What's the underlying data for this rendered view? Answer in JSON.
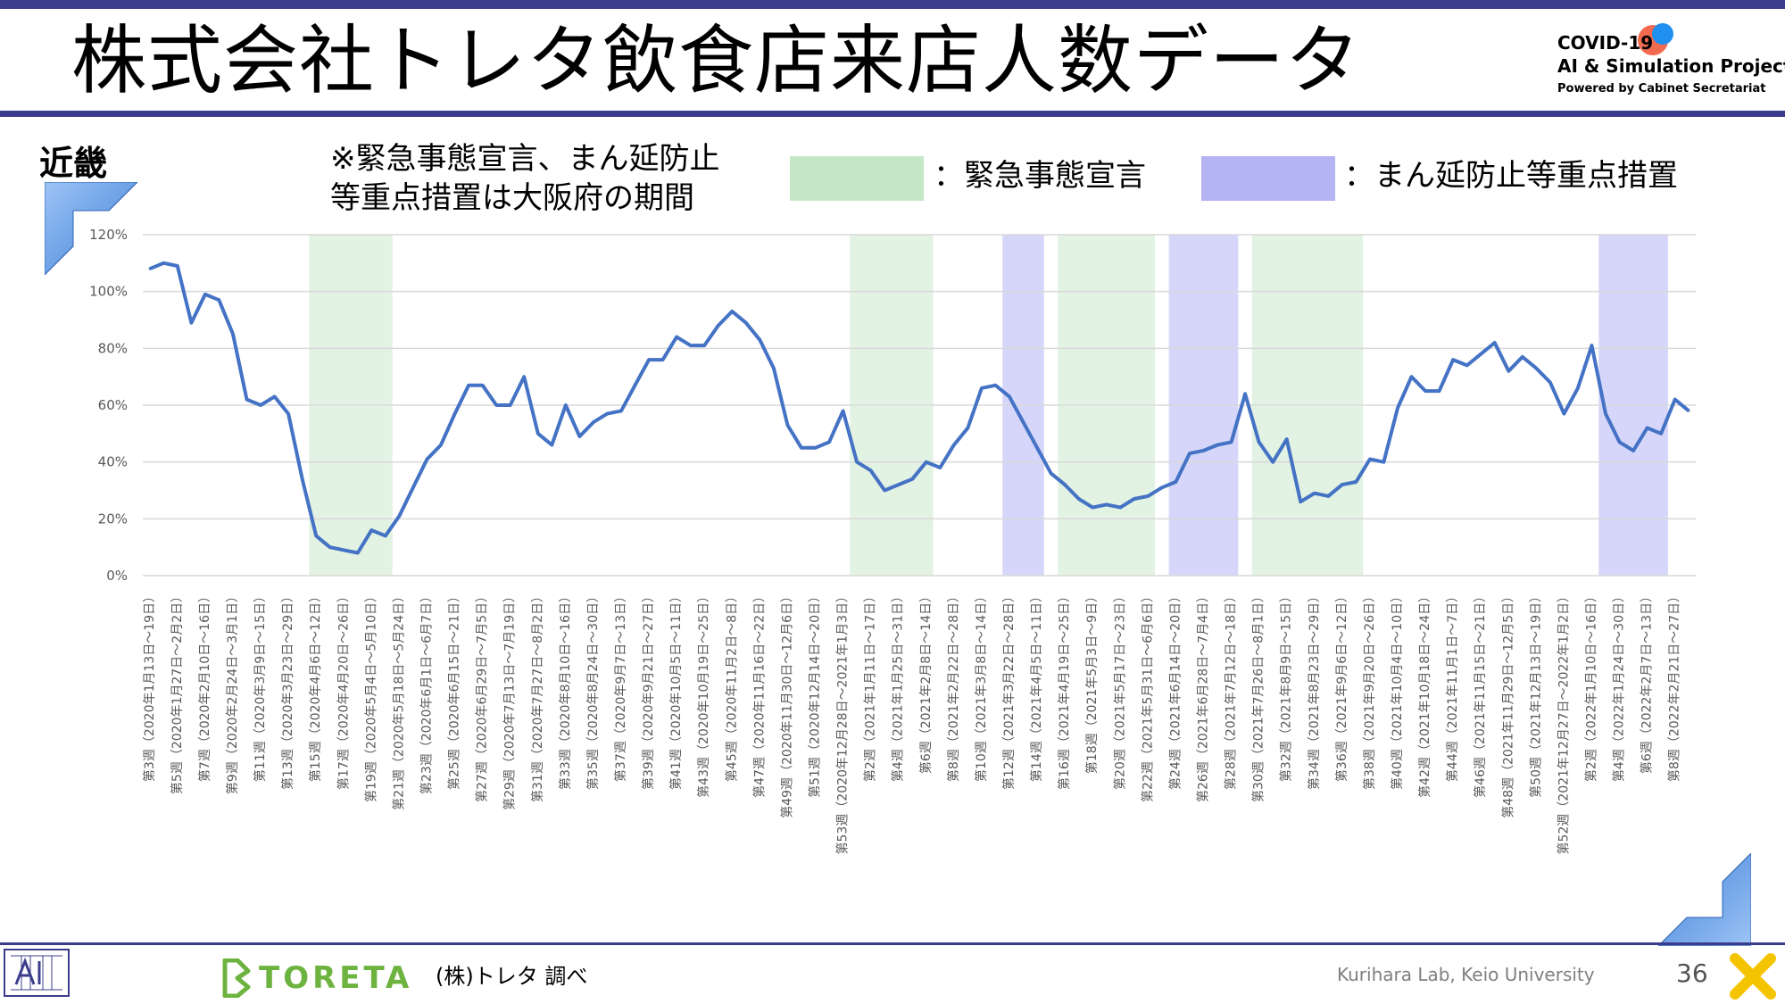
{
  "slide": {
    "title": "株式会社トレタ飲食店来店人数データ",
    "region": "近畿",
    "note_line1": "※緊急事態宣言、まん延防止",
    "note_line2": "等重点措置は大阪府の期間",
    "legend": [
      {
        "label": "：緊急事態宣言",
        "color": "#c6e6c8"
      },
      {
        "label": "：まん延防止等重点措置",
        "color": "#b4b4f5"
      }
    ],
    "logo": {
      "line1": "COVID-19",
      "line2": "AI & Simulation Project",
      "line3": "Powered by Cabinet Secretariat"
    },
    "footer": {
      "brand": "TORETA",
      "source": "(株)トレタ 調べ",
      "credit": "Kurihara Lab, Keio University",
      "page": "36"
    }
  },
  "chart_data": {
    "type": "line",
    "ylim": [
      0,
      1.2
    ],
    "y_ticks": [
      0,
      0.2,
      0.4,
      0.6,
      0.8,
      1.0,
      1.2
    ],
    "y_tick_labels": [
      "0%",
      "20%",
      "40%",
      "60%",
      "80%",
      "100%",
      "120%"
    ],
    "line_color": "#4472c4",
    "grid": true,
    "x_labels_shown": [
      "第3週（2020年1月13日～19日）",
      "第5週（2020年1月27日～2月2日）",
      "第7週（2020年2月10日～16日）",
      "第9週（2020年2月24日～3月1日）",
      "第11週（2020年3月9日～15日）",
      "第13週（2020年3月23日～29日）",
      "第15週（2020年4月6日～12日）",
      "第17週（2020年4月20日～26日）",
      "第19週（2020年5月4日～5月10日）",
      "第21週（2020年5月18日～5月24日）",
      "第23週（2020年6月1日～6月7日）",
      "第25週（2020年6月15日～21日）",
      "第27週（2020年6月29日～7月5日）",
      "第29週（2020年7月13日～7月19日）",
      "第31週（2020年7月27日～8月2日）",
      "第33週（2020年8月10日～16日）",
      "第35週（2020年8月24日～30日）",
      "第37週（2020年9月7日～13日）",
      "第39週（2020年9月21日～27日）",
      "第41週（2020年10月5日～11日）",
      "第43週（2020年10月19日～25日）",
      "第45週（2020年11月2日～8日）",
      "第47週（2020年11月16日～22日）",
      "第49週（2020年11月30日～12月6日）",
      "第51週（2020年12月14日～20日）",
      "第53週（2020年12月28日～2021年1月3日）",
      "第2週（2021年1月11日～17日）",
      "第4週（2021年1月25日～31日）",
      "第6週（2021年2月8日～14日）",
      "第8週（2021年2月22日～28日）",
      "第10週（2021年3月8日～14日）",
      "第12週（2021年3月22日～28日）",
      "第14週（2021年4月5日～11日）",
      "第16週（2021年4月19日～25日）",
      "第18週（2021年5月3日～9日）",
      "第20週（2021年5月17日～23日）",
      "第22週（2021年5月31日～6月6日）",
      "第24週（2021年6月14日～20日）",
      "第26週（2021年6月28日～7月4日）",
      "第28週（2021年7月12日～18日）",
      "第30週（2021年7月26日～8月1日）",
      "第32週（2021年8月9日～15日）",
      "第34週（2021年8月23日～29日）",
      "第36週（2021年9月6日～12日）",
      "第38週（2021年9月20日～26日）",
      "第40週（2021年10月4日～10日）",
      "第42週（2021年10月18日～24日）",
      "第44週（2021年11月1日～7日）",
      "第46週（2021年11月15日～21日）",
      "第48週（2021年11月29日～12月5日）",
      "第50週（2021年12月13日～19日）",
      "第52週（2021年12月27日～2022年1月2日）",
      "第2週（2022年1月10日～16日）",
      "第4週（2022年1月24日～30日）",
      "第6週（2022年2月7日～13日）",
      "第8週（2022年2月21日～27日）"
    ],
    "label_every": 2,
    "values": [
      1.08,
      1.1,
      1.09,
      0.89,
      0.99,
      0.97,
      0.85,
      0.62,
      0.6,
      0.63,
      0.57,
      0.34,
      0.14,
      0.1,
      0.09,
      0.08,
      0.16,
      0.14,
      0.21,
      0.31,
      0.41,
      0.46,
      0.57,
      0.67,
      0.67,
      0.6,
      0.6,
      0.7,
      0.5,
      0.46,
      0.6,
      0.49,
      0.54,
      0.57,
      0.58,
      0.67,
      0.76,
      0.76,
      0.84,
      0.81,
      0.81,
      0.88,
      0.93,
      0.89,
      0.83,
      0.73,
      0.53,
      0.45,
      0.45,
      0.47,
      0.58,
      0.4,
      0.37,
      0.3,
      0.32,
      0.34,
      0.4,
      0.38,
      0.46,
      0.52,
      0.66,
      0.67,
      0.63,
      0.54,
      0.45,
      0.36,
      0.32,
      0.27,
      0.24,
      0.25,
      0.24,
      0.27,
      0.28,
      0.31,
      0.33,
      0.43,
      0.44,
      0.46,
      0.47,
      0.64,
      0.47,
      0.4,
      0.48,
      0.26,
      0.29,
      0.28,
      0.32,
      0.33,
      0.41,
      0.4,
      0.59,
      0.7,
      0.65,
      0.65,
      0.76,
      0.74,
      0.78,
      0.82,
      0.72,
      0.77,
      0.73,
      0.68,
      0.57,
      0.66,
      0.81,
      0.57,
      0.47,
      0.44,
      0.52,
      0.5,
      0.62,
      0.58
    ],
    "bands": [
      {
        "type": "緊急事態宣言",
        "from": 12,
        "to": 18
      },
      {
        "type": "緊急事態宣言",
        "from": 51,
        "to": 57
      },
      {
        "type": "まん延防止等重点措置",
        "from": 62,
        "to": 65
      },
      {
        "type": "緊急事態宣言",
        "from": 66,
        "to": 73
      },
      {
        "type": "まん延防止等重点措置",
        "from": 74,
        "to": 79
      },
      {
        "type": "緊急事態宣言",
        "from": 80,
        "to": 88
      },
      {
        "type": "まん延防止等重点措置",
        "from": 105,
        "to": 110
      }
    ]
  }
}
